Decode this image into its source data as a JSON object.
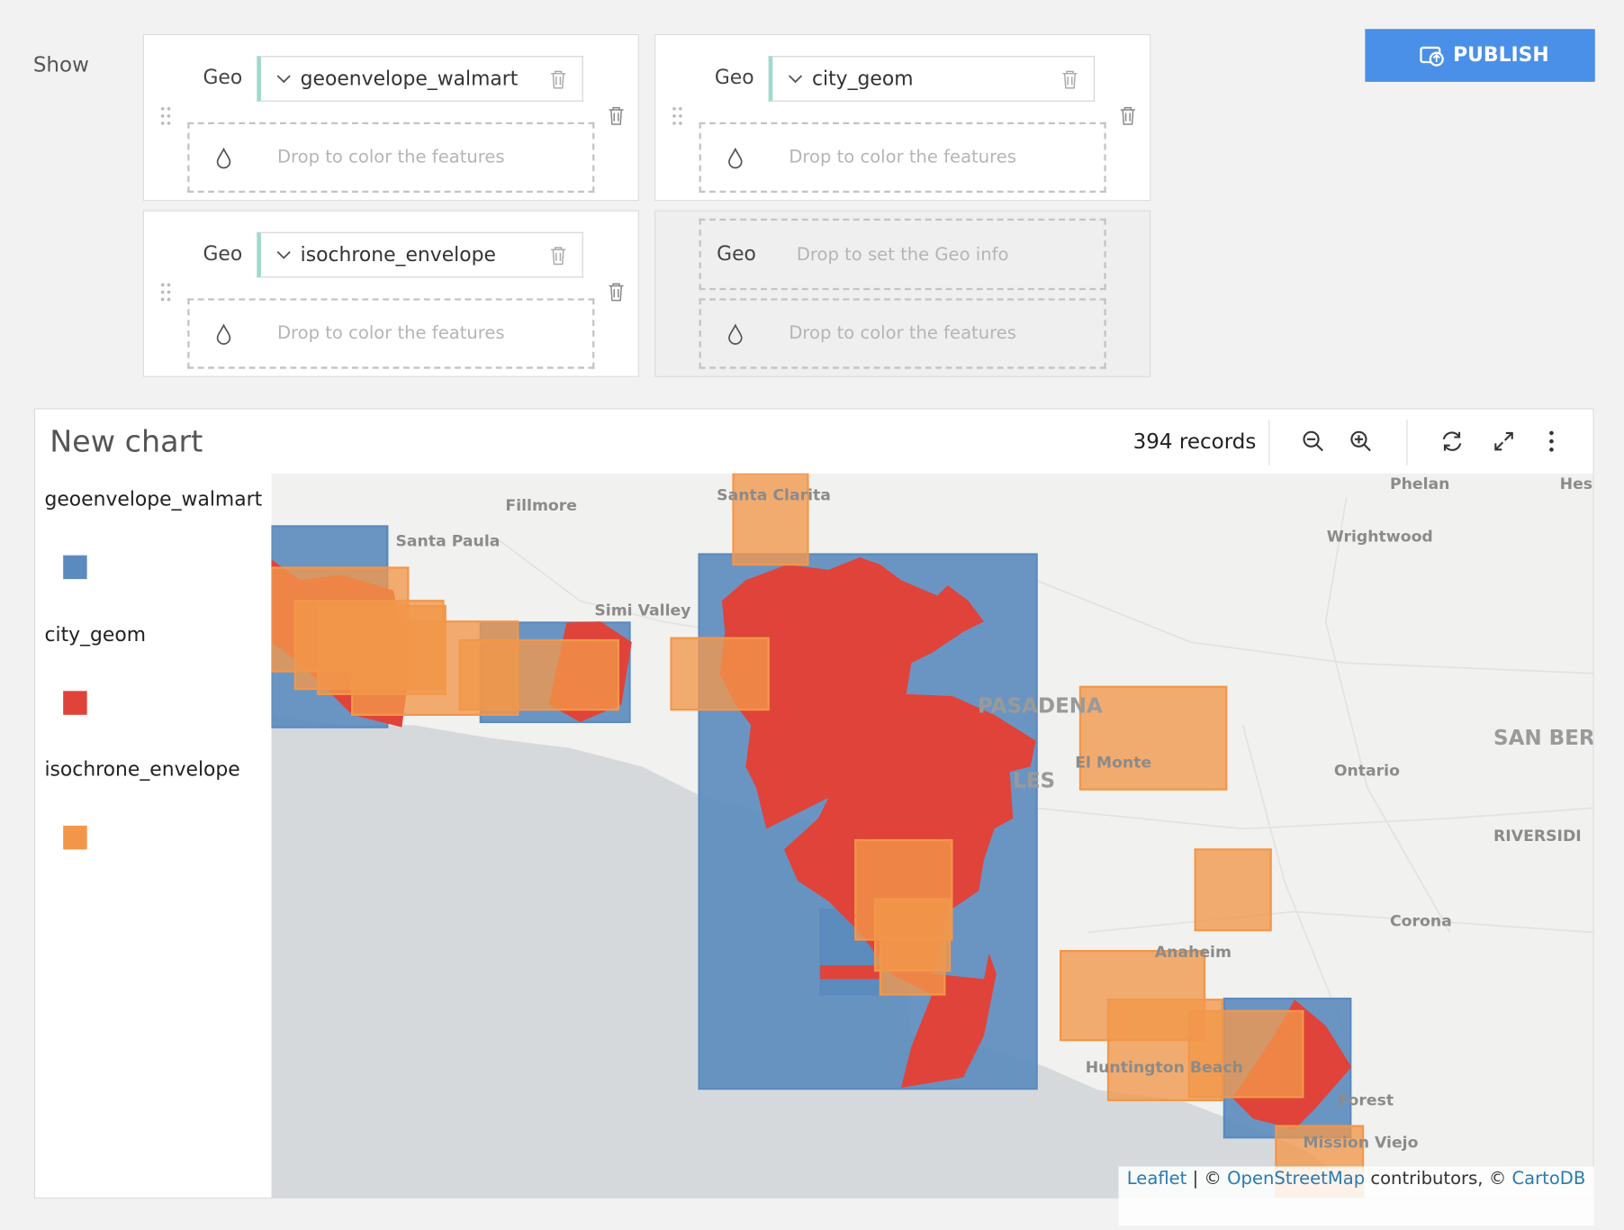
{
  "toolbar": {
    "show_label": "Show",
    "publish": "PUBLISH"
  },
  "layers": [
    {
      "geo_label": "Geo",
      "column": "geoenvelope_walmart",
      "color_placeholder": "Drop to color the features"
    },
    {
      "geo_label": "Geo",
      "column": "city_geom",
      "color_placeholder": "Drop to color the features"
    },
    {
      "geo_label": "Geo",
      "column": "isochrone_envelope",
      "color_placeholder": "Drop to color the features"
    }
  ],
  "empty_layer": {
    "geo_label": "Geo",
    "geo_placeholder": "Drop to set the Geo info",
    "color_placeholder": "Drop to color the features"
  },
  "chart": {
    "title": "New chart",
    "records": "394 records",
    "legend": [
      {
        "name": "geoenvelope_walmart",
        "color": "#5b8bbe"
      },
      {
        "name": "city_geom",
        "color": "#e0433a"
      },
      {
        "name": "isochrone_envelope",
        "color": "#f2974a"
      }
    ],
    "map_labels": [
      "Fillmore",
      "Santa Paula",
      "Simi Valley",
      "Santa Clarita",
      "Phelan",
      "Hesp",
      "Wrightwood",
      "PASADENA",
      "Ontario",
      "SAN BER",
      "RIVERSIDI",
      "Corona",
      "Anaheim",
      "El Monte",
      "Huntington Beach",
      "Forest",
      "Mission Viejo",
      "LES"
    ],
    "attribution": {
      "leaflet": "Leaflet",
      "sep": "| ©",
      "osm": "OpenStreetMap",
      "contrib": "contributors, ©",
      "carto": "CartoDB"
    }
  }
}
